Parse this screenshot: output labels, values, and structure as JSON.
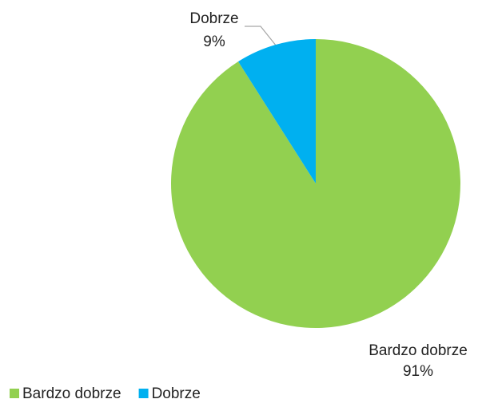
{
  "chart_data": {
    "type": "pie",
    "categories": [
      "Bardzo dobrze",
      "Dobrze"
    ],
    "values": [
      91,
      9
    ],
    "value_labels": [
      "91%",
      "9%"
    ],
    "colors": [
      "#92d050",
      "#00b0f0"
    ],
    "legend": "bottom-left"
  }
}
